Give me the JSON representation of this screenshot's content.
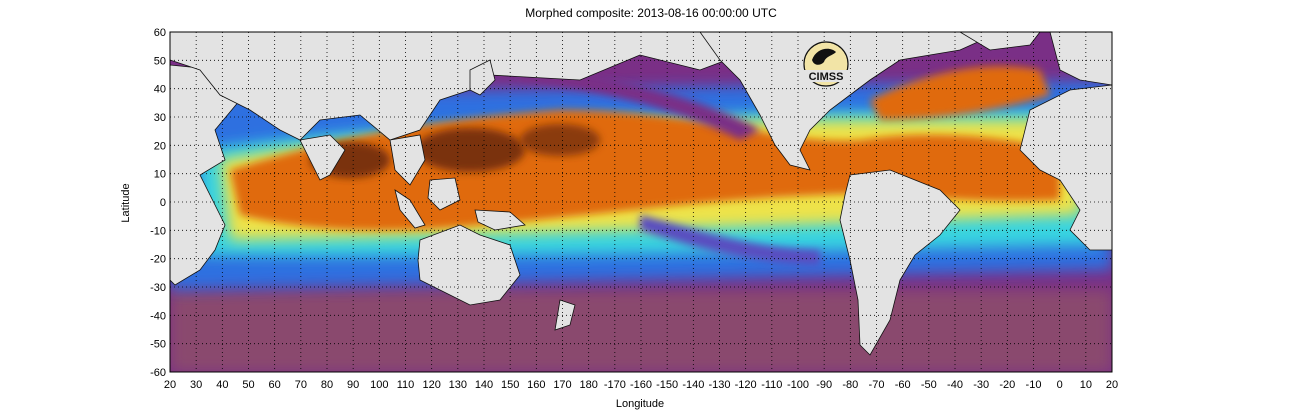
{
  "header": {
    "title": "Morphed composite: 2013-08-16 00:00:00 UTC"
  },
  "axes": {
    "xlabel": "Longitude",
    "ylabel": "Latitude",
    "x_ticks": [
      "20",
      "30",
      "40",
      "50",
      "60",
      "70",
      "80",
      "90",
      "100",
      "110",
      "120",
      "130",
      "140",
      "150",
      "160",
      "170",
      "180",
      "-170",
      "-160",
      "-150",
      "-140",
      "-130",
      "-120",
      "-110",
      "-100",
      "-90",
      "-80",
      "-70",
      "-60",
      "-50",
      "-40",
      "-30",
      "-20",
      "-10",
      "0",
      "10",
      "20"
    ],
    "y_ticks": [
      "60",
      "50",
      "40",
      "30",
      "20",
      "10",
      "0",
      "-10",
      "-20",
      "-30",
      "-40",
      "-50",
      "-60"
    ],
    "lon_range": [
      20,
      380
    ],
    "lat_range": [
      -60,
      60
    ],
    "grid": "dotted"
  },
  "logo": {
    "text": "CIMSS"
  },
  "colors": {
    "land": "#e3e3e3",
    "dry": "#7a2f86",
    "blue": "#2f6fe0",
    "cyan": "#39d4e0",
    "yellow": "#eee34a",
    "orange": "#e06a10",
    "wet": "#7a3208"
  }
}
